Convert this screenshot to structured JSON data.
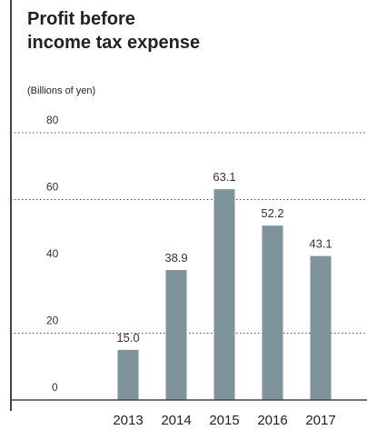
{
  "header": {
    "title_line1": "Profit before",
    "title_line2": "income tax expense",
    "unit": "(Billions of yen)"
  },
  "colors": {
    "bar": "#7f939b",
    "gridline": "#555555",
    "axis": "#444444"
  },
  "chart_data": {
    "type": "bar",
    "title": "Profit before income tax expense",
    "ylabel": "(Billions of yen)",
    "categories": [
      "2013",
      "2014",
      "2015",
      "2016",
      "2017"
    ],
    "values": [
      15.0,
      38.9,
      63.1,
      52.2,
      43.1
    ],
    "value_labels": [
      "15.0",
      "38.9",
      "63.1",
      "52.2",
      "43.1"
    ],
    "ylim": [
      0,
      80
    ],
    "yticks": [
      0,
      20,
      40,
      60,
      80
    ],
    "grid": "dotted horizontal at 20, 60, 80",
    "legend": "none"
  }
}
